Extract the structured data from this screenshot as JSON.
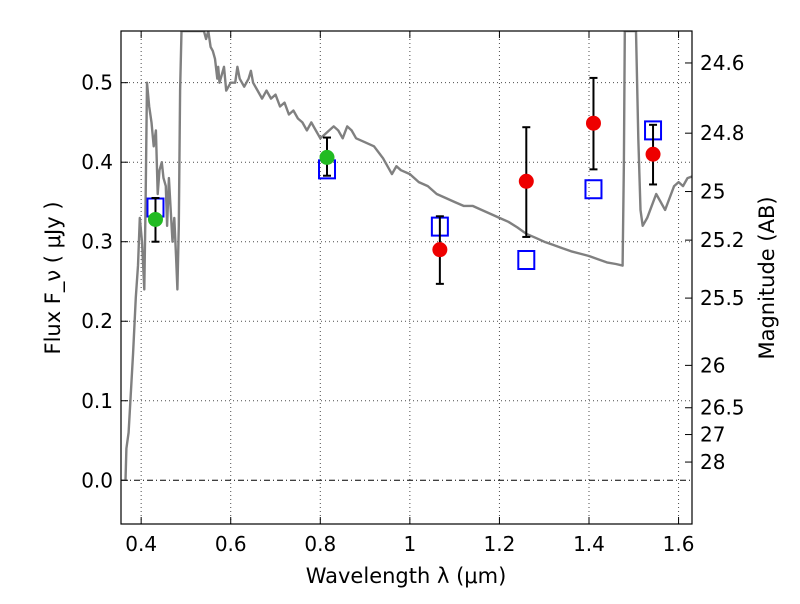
{
  "chart_data": {
    "type": "scatter",
    "xlabel": "Wavelength  λ (μm)",
    "ylabel": "Flux  F_ν ( μJy )",
    "y2label": "Magnitude (AB)",
    "xlim": [
      0.355,
      1.63
    ],
    "ylim": [
      -0.055,
      0.565
    ],
    "x_ticks": [
      0.4,
      0.6,
      0.8,
      1.0,
      1.2,
      1.4,
      1.6
    ],
    "x_tick_labels": [
      "0.4",
      "0.6",
      "0.8",
      "1",
      "1.2",
      "1.4",
      "1.6"
    ],
    "y_ticks": [
      0.0,
      0.1,
      0.2,
      0.3,
      0.4,
      0.5
    ],
    "y_tick_labels": [
      "0.0",
      "0.1",
      "0.2",
      "0.3",
      "0.4",
      "0.5"
    ],
    "magnitude_ticks": [
      {
        "label": "24.6",
        "flux": 0.5248
      },
      {
        "label": "24.8",
        "flux": 0.4365
      },
      {
        "label": "25",
        "flux": 0.3631
      },
      {
        "label": "25.2",
        "flux": 0.302
      },
      {
        "label": "25.5",
        "flux": 0.2291
      },
      {
        "label": "26",
        "flux": 0.1445
      },
      {
        "label": "26.5",
        "flux": 0.0912
      },
      {
        "label": "27",
        "flux": 0.0575
      },
      {
        "label": "28",
        "flux": 0.0229
      }
    ],
    "grid": true,
    "series": [
      {
        "kind": "model_spectrum",
        "style": "line",
        "color": "#808080",
        "points": [
          [
            0.365,
            0.0
          ],
          [
            0.367,
            0.04
          ],
          [
            0.372,
            0.06
          ],
          [
            0.376,
            0.1
          ],
          [
            0.382,
            0.16
          ],
          [
            0.388,
            0.23
          ],
          [
            0.393,
            0.27
          ],
          [
            0.397,
            0.33
          ],
          [
            0.402,
            0.3
          ],
          [
            0.407,
            0.24
          ],
          [
            0.41,
            0.35
          ],
          [
            0.413,
            0.5
          ],
          [
            0.418,
            0.47
          ],
          [
            0.423,
            0.45
          ],
          [
            0.428,
            0.42
          ],
          [
            0.433,
            0.44
          ],
          [
            0.437,
            0.36
          ],
          [
            0.441,
            0.39
          ],
          [
            0.446,
            0.4
          ],
          [
            0.45,
            0.38
          ],
          [
            0.455,
            0.37
          ],
          [
            0.458,
            0.32
          ],
          [
            0.462,
            0.38
          ],
          [
            0.466,
            0.34
          ],
          [
            0.47,
            0.3
          ],
          [
            0.474,
            0.33
          ],
          [
            0.478,
            0.28
          ],
          [
            0.481,
            0.24
          ],
          [
            0.484,
            0.32
          ],
          [
            0.487,
            0.49
          ],
          [
            0.49,
            0.565
          ],
          [
            0.54,
            0.565
          ],
          [
            0.545,
            0.555
          ],
          [
            0.55,
            0.565
          ],
          [
            0.555,
            0.545
          ],
          [
            0.56,
            0.54
          ],
          [
            0.565,
            0.53
          ],
          [
            0.57,
            0.505
          ],
          [
            0.572,
            0.52
          ],
          [
            0.575,
            0.5
          ],
          [
            0.58,
            0.51
          ],
          [
            0.585,
            0.52
          ],
          [
            0.59,
            0.49
          ],
          [
            0.6,
            0.5
          ],
          [
            0.61,
            0.5
          ],
          [
            0.615,
            0.52
          ],
          [
            0.62,
            0.505
          ],
          [
            0.63,
            0.495
          ],
          [
            0.64,
            0.505
          ],
          [
            0.645,
            0.515
          ],
          [
            0.65,
            0.5
          ],
          [
            0.66,
            0.49
          ],
          [
            0.67,
            0.48
          ],
          [
            0.68,
            0.49
          ],
          [
            0.69,
            0.48
          ],
          [
            0.7,
            0.485
          ],
          [
            0.71,
            0.47
          ],
          [
            0.72,
            0.475
          ],
          [
            0.73,
            0.46
          ],
          [
            0.74,
            0.465
          ],
          [
            0.75,
            0.455
          ],
          [
            0.76,
            0.45
          ],
          [
            0.77,
            0.44
          ],
          [
            0.78,
            0.45
          ],
          [
            0.79,
            0.44
          ],
          [
            0.8,
            0.43
          ],
          [
            0.81,
            0.435
          ],
          [
            0.82,
            0.44
          ],
          [
            0.83,
            0.445
          ],
          [
            0.84,
            0.44
          ],
          [
            0.85,
            0.43
          ],
          [
            0.86,
            0.445
          ],
          [
            0.87,
            0.44
          ],
          [
            0.88,
            0.43
          ],
          [
            0.9,
            0.425
          ],
          [
            0.92,
            0.42
          ],
          [
            0.94,
            0.405
          ],
          [
            0.95,
            0.395
          ],
          [
            0.96,
            0.385
          ],
          [
            0.97,
            0.395
          ],
          [
            0.98,
            0.39
          ],
          [
            1.0,
            0.385
          ],
          [
            1.02,
            0.375
          ],
          [
            1.04,
            0.37
          ],
          [
            1.06,
            0.36
          ],
          [
            1.08,
            0.355
          ],
          [
            1.1,
            0.35
          ],
          [
            1.12,
            0.345
          ],
          [
            1.14,
            0.345
          ],
          [
            1.16,
            0.34
          ],
          [
            1.18,
            0.335
          ],
          [
            1.2,
            0.33
          ],
          [
            1.22,
            0.325
          ],
          [
            1.24,
            0.318
          ],
          [
            1.26,
            0.31
          ],
          [
            1.28,
            0.305
          ],
          [
            1.3,
            0.3
          ],
          [
            1.32,
            0.296
          ],
          [
            1.34,
            0.292
          ],
          [
            1.36,
            0.288
          ],
          [
            1.38,
            0.285
          ],
          [
            1.4,
            0.282
          ],
          [
            1.42,
            0.278
          ],
          [
            1.44,
            0.274
          ],
          [
            1.46,
            0.272
          ],
          [
            1.475,
            0.27
          ],
          [
            1.478,
            0.4
          ],
          [
            1.48,
            0.565
          ],
          [
            1.505,
            0.565
          ],
          [
            1.51,
            0.43
          ],
          [
            1.515,
            0.34
          ],
          [
            1.52,
            0.32
          ],
          [
            1.53,
            0.33
          ],
          [
            1.54,
            0.345
          ],
          [
            1.55,
            0.36
          ],
          [
            1.56,
            0.35
          ],
          [
            1.57,
            0.34
          ],
          [
            1.58,
            0.355
          ],
          [
            1.59,
            0.37
          ],
          [
            1.6,
            0.375
          ],
          [
            1.61,
            0.37
          ],
          [
            1.62,
            0.38
          ],
          [
            1.63,
            0.382
          ]
        ]
      },
      {
        "kind": "model_photometry",
        "style": "open_square",
        "color": "#0000ff",
        "points": [
          [
            0.432,
            0.343
          ],
          [
            0.815,
            0.391
          ],
          [
            1.067,
            0.319
          ],
          [
            1.26,
            0.277
          ],
          [
            1.41,
            0.366
          ],
          [
            1.543,
            0.44
          ]
        ]
      },
      {
        "kind": "observed_green",
        "style": "filled_circle",
        "color": "#22bb22",
        "points": [
          {
            "x": 0.432,
            "y": 0.328,
            "err_lo": 0.028,
            "err_hi": 0.027
          },
          {
            "x": 0.815,
            "y": 0.406,
            "err_lo": 0.023,
            "err_hi": 0.025
          }
        ]
      },
      {
        "kind": "observed_red",
        "style": "filled_circle",
        "color": "#ee0000",
        "points": [
          {
            "x": 1.067,
            "y": 0.29,
            "err_lo": 0.043,
            "err_hi": 0.042
          },
          {
            "x": 1.26,
            "y": 0.376,
            "err_lo": 0.07,
            "err_hi": 0.068
          },
          {
            "x": 1.41,
            "y": 0.449,
            "err_lo": 0.058,
            "err_hi": 0.057
          },
          {
            "x": 1.543,
            "y": 0.41,
            "err_lo": 0.038,
            "err_hi": 0.037
          }
        ]
      }
    ]
  }
}
